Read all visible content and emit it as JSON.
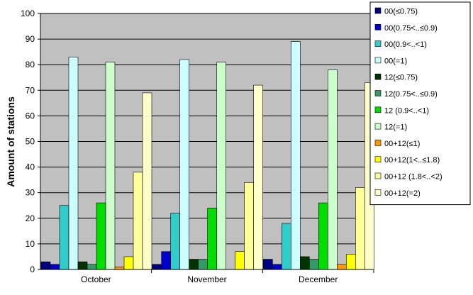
{
  "chart_data": {
    "type": "bar",
    "title": "",
    "xlabel": "",
    "ylabel": "Amount of stations",
    "ylim": [
      0,
      100
    ],
    "yticks": [
      0,
      10,
      20,
      30,
      40,
      50,
      60,
      70,
      80,
      90,
      100
    ],
    "grid": true,
    "legend_position": "right",
    "categories": [
      "October",
      "November",
      "December"
    ],
    "series": [
      {
        "name": "00(≤0.75)",
        "color": "#000080",
        "values": [
          3,
          2,
          4
        ]
      },
      {
        "name": "00(0.75<..≤0.9)",
        "color": "#0000cc",
        "values": [
          2,
          7,
          2
        ]
      },
      {
        "name": "00(0.9<..<1)",
        "color": "#33cccc",
        "values": [
          25,
          22,
          18
        ]
      },
      {
        "name": "00(=1)",
        "color": "#ccffff",
        "values": [
          83,
          82,
          89
        ]
      },
      {
        "name": "12(≤0.75)",
        "color": "#003300",
        "values": [
          3,
          4,
          5
        ]
      },
      {
        "name": "12(0.75<..≤0.9)",
        "color": "#339966",
        "values": [
          2,
          4,
          4
        ]
      },
      {
        "name": "12 (0.9<..<1)",
        "color": "#00dd00",
        "values": [
          26,
          24,
          26
        ]
      },
      {
        "name": "12(=1)",
        "color": "#ccffcc",
        "values": [
          81,
          81,
          78
        ]
      },
      {
        "name": "00+12(≤1)",
        "color": "#ff9900",
        "values": [
          1,
          0,
          2
        ]
      },
      {
        "name": "00+12(1<..≤1.8)",
        "color": "#ffff00",
        "values": [
          5,
          7,
          6
        ]
      },
      {
        "name": "00+12 (1.8<..<2)",
        "color": "#ffff99",
        "values": [
          38,
          34,
          32
        ]
      },
      {
        "name": "00+12(=2)",
        "color": "#ffffcc",
        "values": [
          69,
          72,
          73
        ]
      }
    ]
  }
}
